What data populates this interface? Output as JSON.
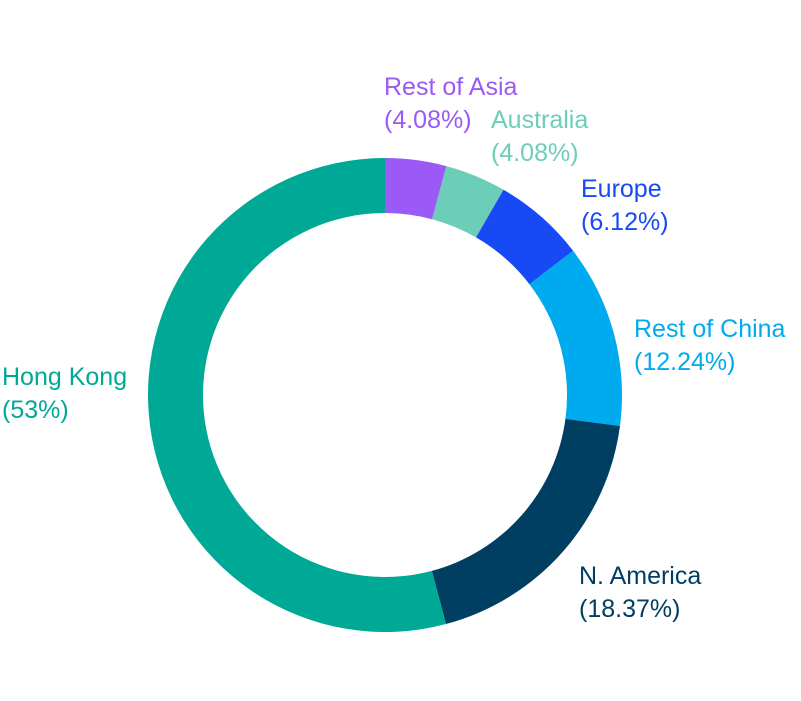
{
  "chart_data": {
    "type": "pie",
    "variant": "donut",
    "start": "12 o'clock, clockwise",
    "slices": [
      {
        "label": "Rest of Asia",
        "pct_text": "(4.08%)",
        "value": 4.08,
        "color": "#9b59f6"
      },
      {
        "label": "Australia",
        "pct_text": "(4.08%)",
        "value": 4.08,
        "color": "#6ccdb8"
      },
      {
        "label": "Europe",
        "pct_text": "(6.12%)",
        "value": 6.12,
        "color": "#1749f5"
      },
      {
        "label": "Rest of China",
        "pct_text": "(12.24%)",
        "value": 12.24,
        "color": "#00aaee"
      },
      {
        "label": "N. America",
        "pct_text": "(18.37%)",
        "value": 18.37,
        "color": "#003e62"
      },
      {
        "label": "Hong Kong",
        "pct_text": "(53%)",
        "value": 53,
        "color": "#00a896"
      }
    ],
    "legend": "none (direct labels)"
  }
}
